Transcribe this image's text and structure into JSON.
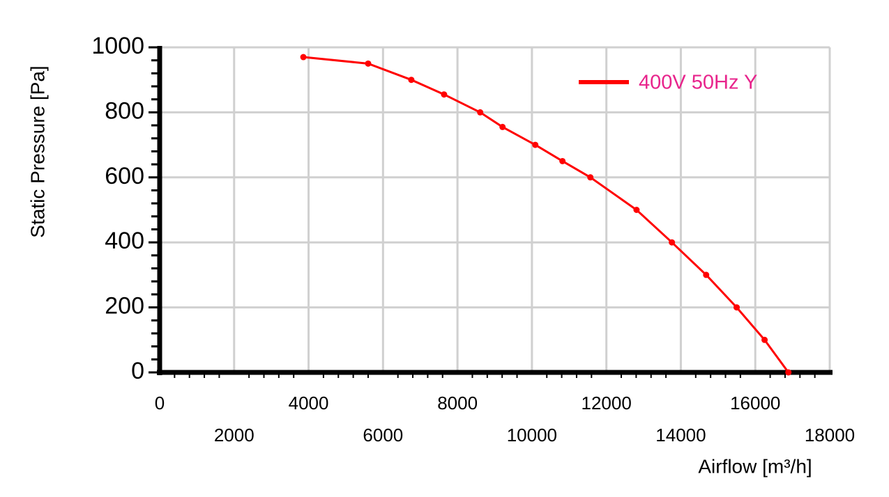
{
  "chart_data": {
    "type": "line",
    "x_label": "Airflow [m³/h]",
    "y_label": "Static Pressure [Pa]",
    "x": [
      3860,
      5600,
      6760,
      7640,
      8610,
      9210,
      10090,
      10820,
      11570,
      12810,
      13760,
      14680,
      15500,
      16250,
      16890
    ],
    "series": [
      {
        "name": "400V 50Hz Y",
        "color": "#ff0000",
        "values": [
          970,
          950,
          900,
          855,
          800,
          755,
          700,
          650,
          600,
          500,
          400,
          300,
          200,
          100,
          0
        ]
      }
    ],
    "xlim": [
      0,
      18000
    ],
    "xticks": [
      0,
      2000,
      4000,
      6000,
      8000,
      10000,
      12000,
      14000,
      16000,
      18000
    ],
    "ylim": [
      0,
      1000
    ],
    "yticks": [
      0,
      200,
      400,
      600,
      800,
      1000
    ],
    "grid": true,
    "legend_position": "upper right",
    "legend_text_color": "#e8248c"
  }
}
